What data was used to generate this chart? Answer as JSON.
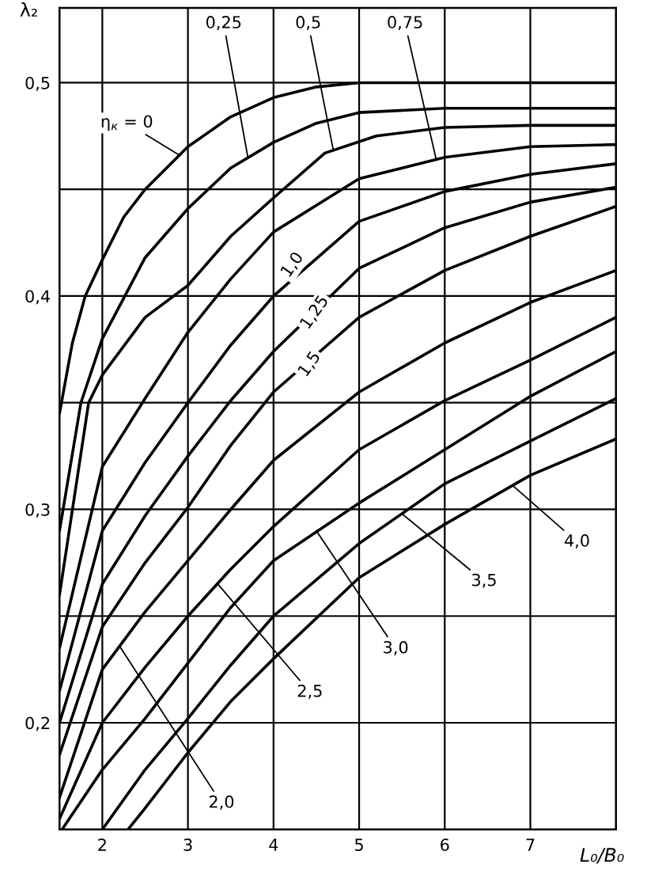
{
  "chart_data": {
    "type": "line",
    "xlabel": "L₀/B₀",
    "ylabel": "λ₂",
    "xlim": [
      1.5,
      8
    ],
    "ylim": [
      0.15,
      0.535
    ],
    "xticks": [
      2,
      3,
      4,
      5,
      6,
      7
    ],
    "yticks": [
      {
        "value": 0.2,
        "label": "0,2"
      },
      {
        "value": 0.25,
        "label": null
      },
      {
        "value": 0.3,
        "label": "0,3"
      },
      {
        "value": 0.35,
        "label": null
      },
      {
        "value": 0.4,
        "label": "0,4"
      },
      {
        "value": 0.45,
        "label": null
      },
      {
        "value": 0.5,
        "label": "0,5"
      }
    ],
    "grid": true,
    "series": [
      {
        "color": "#000000",
        "x": [
          1.5,
          1.65,
          1.8,
          2,
          2.25,
          2.5,
          3,
          3.5,
          4,
          4.5,
          5,
          6,
          7,
          8
        ],
        "values": [
          0.345,
          0.378,
          0.4,
          0.417,
          0.437,
          0.45,
          0.47,
          0.484,
          0.493,
          0.498,
          0.5,
          0.5,
          0.5,
          0.5
        ]
      },
      {
        "color": "#000000",
        "x": [
          1.5,
          1.75,
          2,
          2.5,
          3,
          3.5,
          4,
          4.5,
          5,
          6,
          7,
          8
        ],
        "values": [
          0.29,
          0.35,
          0.38,
          0.418,
          0.441,
          0.46,
          0.472,
          0.481,
          0.486,
          0.488,
          0.488,
          0.488
        ]
      },
      {
        "color": "#000000",
        "x": [
          1.5,
          1.84,
          2,
          2.5,
          3,
          3.5,
          4,
          4.6,
          5.2,
          6,
          7,
          8
        ],
        "values": [
          0.26,
          0.35,
          0.363,
          0.39,
          0.405,
          0.428,
          0.446,
          0.467,
          0.475,
          0.479,
          0.48,
          0.48
        ]
      },
      {
        "color": "#000000",
        "x": [
          1.5,
          2,
          2.5,
          3,
          3.5,
          4,
          5,
          6,
          7,
          8
        ],
        "values": [
          0.235,
          0.32,
          0.352,
          0.383,
          0.408,
          0.43,
          0.455,
          0.465,
          0.47,
          0.471
        ]
      },
      {
        "color": "#000000",
        "x": [
          1.5,
          2,
          2.5,
          3,
          3.5,
          4,
          5,
          6,
          7,
          8
        ],
        "values": [
          0.215,
          0.29,
          0.322,
          0.35,
          0.377,
          0.4,
          0.435,
          0.449,
          0.457,
          0.462
        ]
      },
      {
        "color": "#000000",
        "x": [
          1.5,
          2,
          2.5,
          3,
          3.5,
          4,
          5,
          6,
          7,
          8
        ],
        "values": [
          0.2,
          0.265,
          0.297,
          0.325,
          0.351,
          0.374,
          0.413,
          0.432,
          0.444,
          0.451
        ]
      },
      {
        "color": "#000000",
        "x": [
          1.5,
          2,
          2.5,
          3,
          3.5,
          4,
          5,
          6,
          7,
          8
        ],
        "values": [
          0.185,
          0.245,
          0.275,
          0.301,
          0.33,
          0.355,
          0.39,
          0.412,
          0.428,
          0.442
        ]
      },
      {
        "color": "#000000",
        "x": [
          1.5,
          2,
          2.5,
          3,
          3.5,
          4,
          5,
          6,
          7,
          8
        ],
        "values": [
          0.165,
          0.225,
          0.252,
          0.276,
          0.3,
          0.323,
          0.355,
          0.378,
          0.397,
          0.412
        ]
      },
      {
        "color": "#000000",
        "x": [
          1.5,
          2,
          2.5,
          3,
          3.5,
          4,
          5,
          6,
          7,
          8
        ],
        "values": [
          0.155,
          0.2,
          0.226,
          0.25,
          0.272,
          0.292,
          0.328,
          0.351,
          0.37,
          0.39
        ]
      },
      {
        "color": "#000000",
        "x": [
          1.53,
          2,
          2.5,
          3,
          3.5,
          4,
          5,
          6,
          7,
          8
        ],
        "values": [
          0.15,
          0.178,
          0.202,
          0.228,
          0.254,
          0.276,
          0.303,
          0.328,
          0.353,
          0.374
        ]
      },
      {
        "color": "#000000",
        "x": [
          2,
          2.5,
          3,
          3.5,
          4,
          5,
          6,
          7,
          8
        ],
        "values": [
          0.15,
          0.178,
          0.202,
          0.227,
          0.25,
          0.284,
          0.312,
          0.332,
          0.352
        ]
      },
      {
        "color": "#000000",
        "x": [
          2.3,
          2.5,
          3,
          3.5,
          4,
          5,
          6,
          7,
          8
        ],
        "values": [
          0.15,
          0.16,
          0.186,
          0.21,
          0.23,
          0.268,
          0.293,
          0.316,
          0.333
        ]
      }
    ],
    "annotations": [
      {
        "text": "η$_{к}$ = 0",
        "x": 2.9,
        "y": 0.466
      },
      {
        "text": "0,25",
        "x": 3.7,
        "y": 0.465
      },
      {
        "text": "0,5",
        "x": 4.7,
        "y": 0.468
      },
      {
        "text": "0,75",
        "x": 5.9,
        "y": 0.464
      },
      {
        "text": "1,0",
        "x": 4.2,
        "y": 0.407
      },
      {
        "text": "1,25",
        "x": 4.3,
        "y": 0.385
      },
      {
        "text": "1,5",
        "x": 4.15,
        "y": 0.36
      },
      {
        "text": "2,0",
        "x": 2.2,
        "y": 0.236
      },
      {
        "text": "2,5",
        "x": 3.35,
        "y": 0.265
      },
      {
        "text": "3,0",
        "x": 4.5,
        "y": 0.29
      },
      {
        "text": "3,5",
        "x": 5.5,
        "y": 0.298
      },
      {
        "text": "4,0",
        "x": 6.8,
        "y": 0.311
      }
    ]
  }
}
